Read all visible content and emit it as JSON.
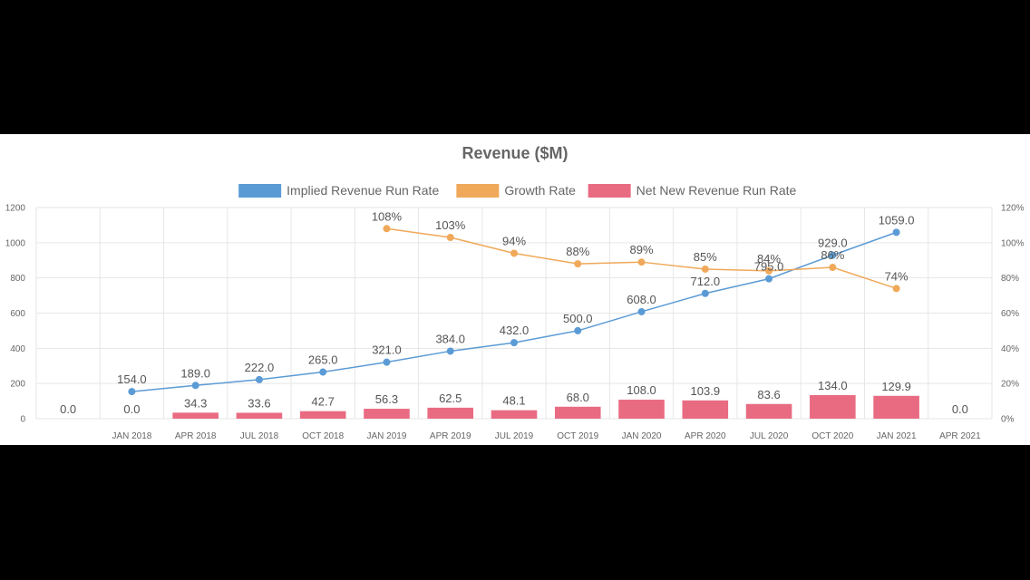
{
  "chart_data": {
    "type": "bar",
    "title": "Revenue ($M)",
    "categories": [
      "",
      "JAN 2018",
      "APR 2018",
      "JUL 2018",
      "OCT 2018",
      "JAN 2019",
      "APR 2019",
      "JUL 2019",
      "OCT 2019",
      "JAN 2020",
      "APR 2020",
      "JUL 2020",
      "OCT 2020",
      "JAN 2021",
      "APR 2021"
    ],
    "y_left": {
      "range": [
        0,
        1200
      ],
      "ticks": [
        "0",
        "200",
        "400",
        "600",
        "800",
        "1000",
        "1200"
      ]
    },
    "y_right": {
      "range": [
        0,
        120
      ],
      "ticks": [
        "0%",
        "20%",
        "40%",
        "60%",
        "80%",
        "100%",
        "120%"
      ]
    },
    "grid": true,
    "legend_position": "top",
    "series": [
      {
        "name": "Implied Revenue Run Rate",
        "type": "line",
        "axis": "left",
        "color": "#5b9bd5",
        "values": [
          null,
          154.0,
          189.0,
          222.0,
          265.0,
          321.0,
          384.0,
          432.0,
          500.0,
          608.0,
          712.0,
          795.0,
          929.0,
          1059.0,
          null
        ],
        "labels": [
          "",
          "154.0",
          "189.0",
          "222.0",
          "265.0",
          "321.0",
          "384.0",
          "432.0",
          "500.0",
          "608.0",
          "712.0",
          "795.0",
          "929.0",
          "1059.0",
          ""
        ]
      },
      {
        "name": "Growth Rate",
        "type": "line",
        "axis": "right",
        "color": "#f0a95a",
        "values": [
          null,
          null,
          null,
          null,
          null,
          108,
          103,
          94,
          88,
          89,
          85,
          84,
          86,
          74,
          null
        ],
        "labels": [
          "",
          "",
          "",
          "",
          "",
          "108%",
          "103%",
          "94%",
          "88%",
          "89%",
          "85%",
          "84%",
          "86%",
          "74%",
          ""
        ]
      },
      {
        "name": "Net New Revenue Run Rate",
        "type": "bar",
        "axis": "left",
        "color": "#e96b82",
        "values": [
          0.0,
          0.0,
          34.3,
          33.6,
          42.7,
          56.3,
          62.5,
          48.1,
          68.0,
          108.0,
          103.9,
          83.6,
          134.0,
          129.9,
          0.0
        ],
        "labels": [
          "0.0",
          "0.0",
          "34.3",
          "33.6",
          "42.7",
          "56.3",
          "62.5",
          "48.1",
          "68.0",
          "108.0",
          "103.9",
          "83.6",
          "134.0",
          "129.9",
          "0.0"
        ]
      }
    ]
  }
}
